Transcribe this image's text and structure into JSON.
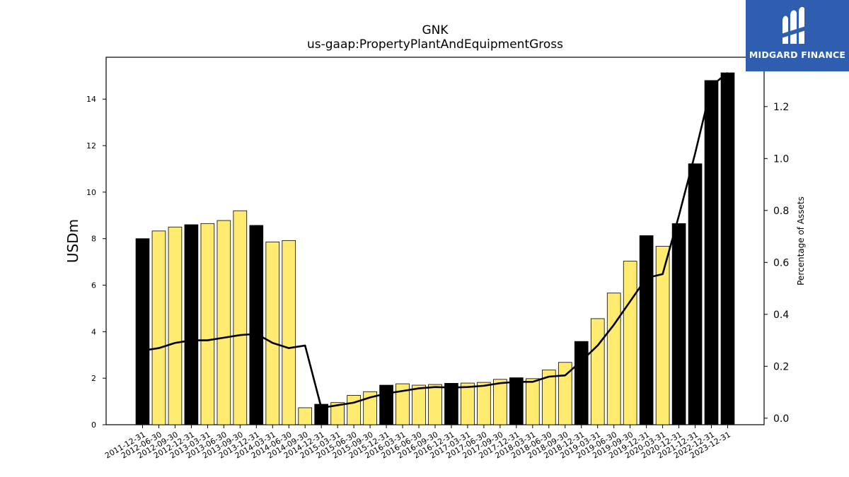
{
  "chart_data": {
    "type": "bar",
    "title": "GNK",
    "subtitle": "us-gaap:PropertyPlantAndEquipmentGross",
    "ylabel": "USDm",
    "ylabel_right": "Percentage of Assets",
    "ylim": [
      0,
      15.8
    ],
    "ylim_right": [
      -0.025,
      1.39
    ],
    "yticks": [
      0,
      2,
      4,
      6,
      8,
      10,
      12,
      14
    ],
    "yticks_right": [
      "0.0",
      "0.2",
      "0.4",
      "0.6",
      "0.8",
      "1.0",
      "1.2"
    ],
    "grid": false,
    "categories": [
      "2011-12-31",
      "2012-06-30",
      "2012-09-30",
      "2012-12-31",
      "2013-03-31",
      "2013-06-30",
      "2013-09-30",
      "2013-12-31",
      "2014-03-31",
      "2014-06-30",
      "2014-09-30",
      "2014-12-31",
      "2015-03-31",
      "2015-06-30",
      "2015-09-30",
      "2015-12-31",
      "2016-03-31",
      "2016-06-30",
      "2016-09-30",
      "2016-12-31",
      "2017-03-31",
      "2017-06-30",
      "2017-09-30",
      "2017-12-31",
      "2018-03-31",
      "2018-06-30",
      "2018-09-30",
      "2018-12-31",
      "2019-03-31",
      "2019-06-30",
      "2019-09-30",
      "2019-12-31",
      "2020-03-31",
      "2020-12-31",
      "2021-12-31",
      "2022-12-31",
      "2023-12-31"
    ],
    "series": [
      {
        "type": "bar",
        "values": [
          8.0,
          8.33,
          8.5,
          8.6,
          8.65,
          8.78,
          9.2,
          8.57,
          7.86,
          7.92,
          0.73,
          0.88,
          0.95,
          1.26,
          1.42,
          1.7,
          1.76,
          1.7,
          1.73,
          1.78,
          1.79,
          1.82,
          1.95,
          2.02,
          1.98,
          2.35,
          2.68,
          3.58,
          4.56,
          5.66,
          7.03,
          8.13,
          7.67,
          8.65,
          11.22,
          14.8,
          15.13
        ],
        "annual": [
          true,
          false,
          false,
          true,
          false,
          false,
          false,
          true,
          false,
          false,
          false,
          true,
          false,
          false,
          false,
          true,
          false,
          false,
          false,
          true,
          false,
          false,
          false,
          true,
          false,
          false,
          false,
          true,
          false,
          false,
          false,
          true,
          false,
          true,
          true,
          true,
          true
        ]
      },
      {
        "type": "line",
        "axis": "right",
        "values": [
          0.26,
          0.27,
          0.29,
          0.3,
          0.3,
          0.31,
          0.32,
          0.325,
          0.29,
          0.27,
          0.28,
          0.04,
          0.05,
          0.06,
          0.08,
          0.095,
          0.105,
          0.115,
          0.12,
          0.118,
          0.12,
          0.125,
          0.135,
          0.14,
          0.14,
          0.16,
          0.165,
          0.22,
          0.28,
          0.36,
          0.45,
          0.54,
          0.555,
          0.78,
          1.02,
          1.28,
          1.33
        ]
      }
    ],
    "colors": {
      "annual": "#000000",
      "quarter": "#ffeb70",
      "line": "#000000"
    }
  },
  "logo": {
    "text": "MIDGARD FINANCE",
    "background": "#2f5eb0"
  }
}
